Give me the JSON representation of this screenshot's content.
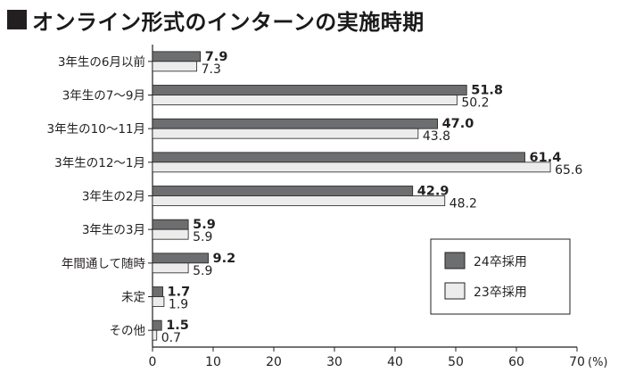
{
  "title": "オンライン形式のインターンの実施時期",
  "chart_data": {
    "type": "bar",
    "orientation": "horizontal",
    "title": "オンライン形式のインターンの実施時期",
    "unit": "(%)",
    "categories": [
      "3年生の6月以前",
      "3年生の7～9月",
      "3年生の10～11月",
      "3年生の12～1月",
      "3年生の2月",
      "3年生の3月",
      "年間通して随時",
      "未定",
      "その他"
    ],
    "series": [
      {
        "name": "24卒採用",
        "color": "#6d6e70",
        "values": [
          7.9,
          51.8,
          47.0,
          61.4,
          42.9,
          5.9,
          9.2,
          1.7,
          1.5
        ],
        "labels": [
          "7.9",
          "51.8",
          "47.0",
          "61.4",
          "42.9",
          "5.9",
          "9.2",
          "1.7",
          "1.5"
        ]
      },
      {
        "name": "23卒採用",
        "color": "#ececec",
        "values": [
          7.3,
          50.2,
          43.8,
          65.6,
          48.2,
          5.9,
          5.9,
          1.9,
          0.7
        ],
        "labels": [
          "7.3",
          "50.2",
          "43.8",
          "65.6",
          "48.2",
          "5.9",
          "5.9",
          "1.9",
          "0.7"
        ]
      }
    ],
    "xlim": [
      0,
      70
    ],
    "xticks": [
      "0",
      "10",
      "20",
      "30",
      "40",
      "50",
      "60",
      "70"
    ],
    "grid": false,
    "legend": "bottom-right"
  }
}
